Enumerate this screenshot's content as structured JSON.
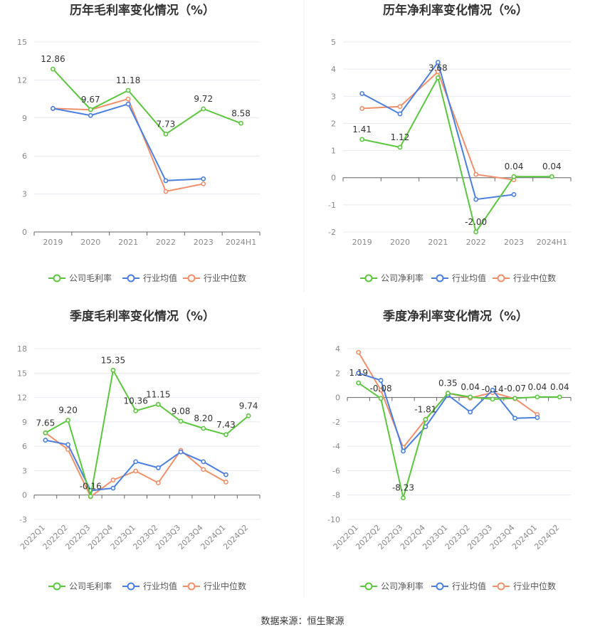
{
  "footer": {
    "source": "数据来源：恒生聚源"
  },
  "colors": {
    "company": "#5cc63f",
    "industry_avg": "#4a7fe0",
    "industry_median": "#f0906a",
    "grid": "#e6e9f0",
    "axis": "#666666"
  },
  "chart_data": [
    {
      "id": "annual-gross",
      "type": "line",
      "title": "历年毛利率变化情况（%）",
      "categories": [
        "2019",
        "2020",
        "2021",
        "2022",
        "2023",
        "2024H1"
      ],
      "yticks": [
        "0",
        "3",
        "6",
        "9",
        "12",
        "15"
      ],
      "ylim": [
        0,
        15
      ],
      "grid": true,
      "legend_position": "bottom",
      "series": [
        {
          "name": "公司毛利率",
          "role": "company",
          "values": [
            12.86,
            9.67,
            11.18,
            7.73,
            9.72,
            8.58
          ],
          "labels": [
            "12.86",
            "9.67",
            "11.18",
            "7.73",
            "9.72",
            "8.58"
          ]
        },
        {
          "name": "行业均值",
          "role": "industry_avg",
          "values": [
            9.75,
            9.2,
            10.1,
            4.05,
            4.2,
            null
          ]
        },
        {
          "name": "行业中位数",
          "role": "industry_median",
          "values": [
            9.75,
            9.65,
            10.5,
            3.2,
            3.8,
            null
          ]
        }
      ]
    },
    {
      "id": "annual-net",
      "type": "line",
      "title": "历年净利率变化情况（%）",
      "categories": [
        "2019",
        "2020",
        "2021",
        "2022",
        "2023",
        "2024H1"
      ],
      "yticks": [
        "-2",
        "-1",
        "0",
        "1",
        "2",
        "3",
        "4",
        "5"
      ],
      "ylim": [
        -2,
        5
      ],
      "grid": true,
      "legend_position": "bottom",
      "series": [
        {
          "name": "公司净利率",
          "role": "company",
          "values": [
            1.41,
            1.12,
            3.68,
            -2.0,
            0.04,
            0.04
          ],
          "labels": [
            "1.41",
            "1.12",
            "3.68",
            "-2.00",
            "0.04",
            "0.04"
          ]
        },
        {
          "name": "行业均值",
          "role": "industry_avg",
          "values": [
            3.1,
            2.35,
            4.25,
            -0.8,
            -0.62,
            null
          ]
        },
        {
          "name": "行业中位数",
          "role": "industry_median",
          "values": [
            2.55,
            2.62,
            3.9,
            0.12,
            -0.08,
            null
          ]
        }
      ]
    },
    {
      "id": "quarterly-gross",
      "type": "line",
      "title": "季度毛利率变化情况（%）",
      "categories": [
        "2022Q1",
        "2022Q2",
        "2022Q3",
        "2022Q4",
        "2023Q1",
        "2023Q2",
        "2023Q3",
        "2023Q4",
        "2024Q1",
        "2024Q2"
      ],
      "yticks": [
        "-3",
        "0",
        "3",
        "6",
        "9",
        "12",
        "15",
        "18"
      ],
      "ylim": [
        -3,
        18
      ],
      "grid": true,
      "legend_position": "bottom",
      "series": [
        {
          "name": "公司毛利率",
          "role": "company",
          "values": [
            7.65,
            9.2,
            -0.16,
            15.35,
            10.36,
            11.15,
            9.08,
            8.2,
            7.43,
            9.74
          ],
          "labels": [
            "7.65",
            "9.20",
            "-0.16",
            "15.35",
            "10.36",
            "11.15",
            "9.08",
            "8.20",
            "7.43",
            "9.74"
          ]
        },
        {
          "name": "行业均值",
          "role": "industry_avg",
          "values": [
            6.75,
            6.2,
            0.55,
            0.85,
            4.1,
            3.35,
            5.3,
            4.1,
            2.5,
            null
          ]
        },
        {
          "name": "行业中位数",
          "role": "industry_median",
          "values": [
            7.65,
            5.6,
            -0.2,
            1.85,
            2.95,
            1.5,
            5.5,
            3.15,
            1.6,
            null
          ]
        }
      ]
    },
    {
      "id": "quarterly-net",
      "type": "line",
      "title": "季度净利率变化情况（%）",
      "categories": [
        "2022Q1",
        "2022Q2",
        "2022Q3",
        "2022Q4",
        "2023Q1",
        "2023Q2",
        "2023Q3",
        "2023Q4",
        "2024Q1",
        "2024Q2"
      ],
      "yticks": [
        "-10",
        "-8",
        "-6",
        "-4",
        "-2",
        "0",
        "2",
        "4"
      ],
      "ylim": [
        -10,
        4
      ],
      "grid": true,
      "legend_position": "bottom",
      "series": [
        {
          "name": "公司净利率",
          "role": "company",
          "values": [
            1.19,
            -0.08,
            -8.23,
            -1.81,
            0.35,
            0.04,
            -0.14,
            -0.07,
            0.04,
            0.04
          ],
          "labels": [
            "1.19",
            "-0.08",
            "-8.23",
            "-1.81",
            "0.35",
            "0.04",
            "-0.14",
            "-0.07",
            "0.04",
            "0.04"
          ]
        },
        {
          "name": "行业均值",
          "role": "industry_avg",
          "values": [
            2.0,
            1.4,
            -4.4,
            -2.4,
            0.2,
            -1.2,
            0.6,
            -1.7,
            -1.65,
            null
          ]
        },
        {
          "name": "行业中位数",
          "role": "industry_median",
          "values": [
            3.7,
            0.6,
            -4.1,
            -1.8,
            0.35,
            -0.05,
            0.4,
            -0.1,
            -1.4,
            null
          ]
        }
      ]
    }
  ]
}
